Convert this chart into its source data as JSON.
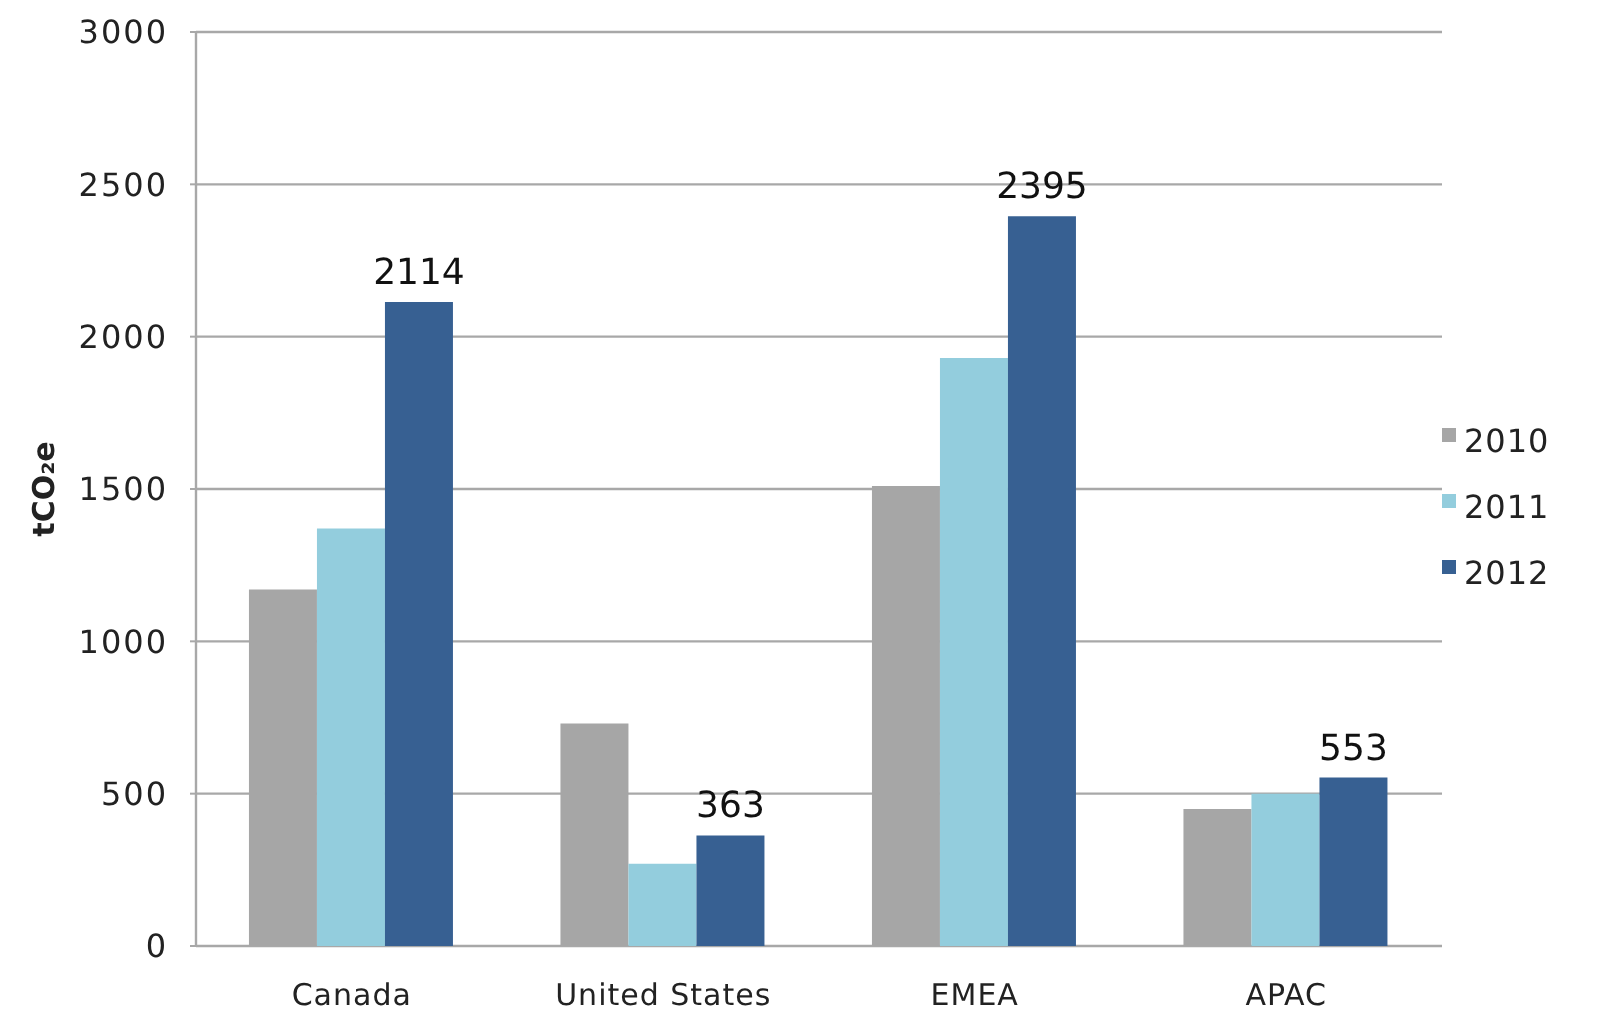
{
  "chart_data": {
    "type": "bar",
    "categories": [
      "Canada",
      "United States",
      "EMEA",
      "APAC"
    ],
    "series": [
      {
        "name": "2010",
        "color": "#a6a6a6",
        "values": [
          1170,
          730,
          1510,
          450
        ]
      },
      {
        "name": "2011",
        "color": "#93cddd",
        "values": [
          1370,
          270,
          1930,
          500
        ]
      },
      {
        "name": "2012",
        "color": "#376092",
        "values": [
          2114,
          363,
          2395,
          553
        ],
        "value_labels": [
          "2114",
          "363",
          "2395",
          "553"
        ]
      }
    ],
    "ylabel": "tCO₂e",
    "ylim": [
      0,
      3000
    ],
    "yticks": [
      0,
      500,
      1000,
      1500,
      2000,
      2500,
      3000
    ],
    "grid": "y",
    "legend": "right"
  }
}
